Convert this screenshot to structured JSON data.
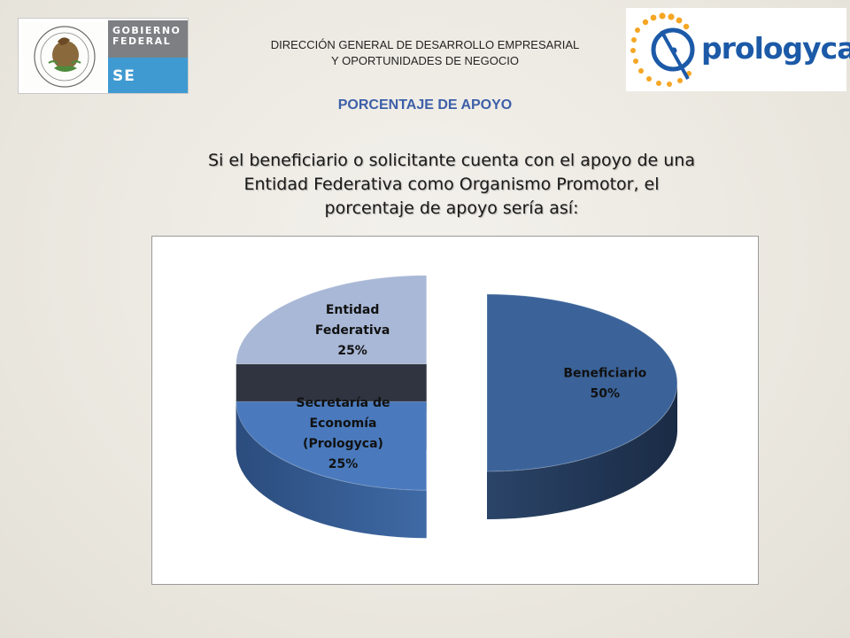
{
  "header": {
    "line1": "DIRECCIÓN GENERAL DE DESARROLLO EMPRESARIAL",
    "line2": "Y OPORTUNIDADES DE NEGOCIO"
  },
  "gov_logo": {
    "text_line1": "GOBIERNO",
    "text_line2": "FEDERAL",
    "text_se": "SE"
  },
  "brand_logo": {
    "text": "prologyca"
  },
  "section_title": "PORCENTAJE DE APOYO",
  "intro": {
    "line1": "Si el beneficiario o solicitante cuenta con el apoyo de  una",
    "line2": "Entidad Federativa como Organismo Promotor, el",
    "line3": "porcentaje de apoyo sería así:"
  },
  "chart_data": {
    "type": "pie",
    "style": "3d-exploded",
    "slices": [
      {
        "label_lines": [
          "Beneficiario"
        ],
        "value": 50,
        "value_label": "50%",
        "color": "#3b6399"
      },
      {
        "label_lines": [
          "Secretaría de",
          "Economía",
          "(Prologyca)"
        ],
        "value": 25,
        "value_label": "25%",
        "color": "#4a7abd"
      },
      {
        "label_lines": [
          "Entidad",
          "Federativa"
        ],
        "value": 25,
        "value_label": "25%",
        "color": "#a9b8d6"
      }
    ]
  }
}
